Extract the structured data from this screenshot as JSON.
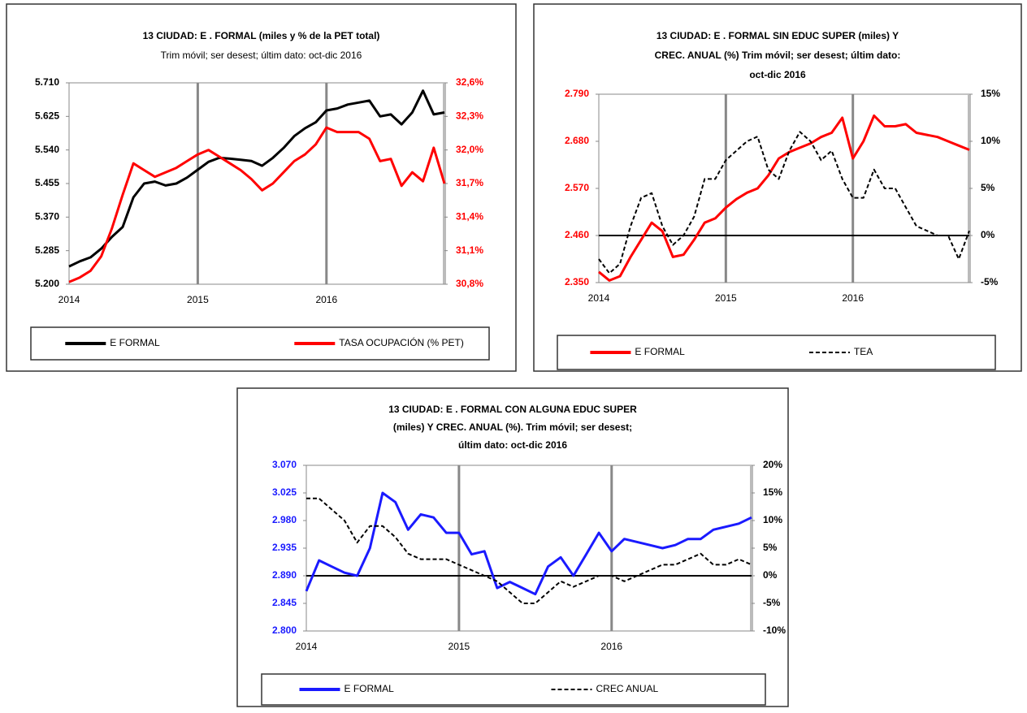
{
  "chart_data": [
    {
      "type": "line",
      "title": "13 CIUDAD: E . FORMAL (miles y % de la PET total)",
      "subtitle": "Trim móvil; ser desest; últim dato: oct-dic 2016",
      "categories": [
        "2014",
        null,
        null,
        null,
        null,
        null,
        null,
        null,
        null,
        null,
        null,
        null,
        "2015",
        null,
        null,
        null,
        null,
        null,
        null,
        null,
        null,
        null,
        null,
        null,
        "2016",
        null,
        null,
        null,
        null,
        null,
        null,
        null,
        null,
        null,
        null,
        null
      ],
      "ylim": [
        5200,
        5710
      ],
      "yticks": [
        {
          "value": 5200,
          "label": "5.200"
        },
        {
          "value": 5285,
          "label": "5.285"
        },
        {
          "value": 5370,
          "label": "5.370"
        },
        {
          "value": 5455,
          "label": "5.455"
        },
        {
          "value": 5540,
          "label": "5.540"
        },
        {
          "value": 5625,
          "label": "5.625"
        },
        {
          "value": 5710,
          "label": "5.710"
        }
      ],
      "y2lim": [
        30.8,
        32.6
      ],
      "y2ticks": [
        {
          "value": 30.8,
          "label": "30,8%"
        },
        {
          "value": 31.1,
          "label": "31,1%"
        },
        {
          "value": 31.4,
          "label": "31,4%"
        },
        {
          "value": 31.7,
          "label": "31,7%"
        },
        {
          "value": 32.0,
          "label": "32,0%"
        },
        {
          "value": 32.3,
          "label": "32,3%"
        },
        {
          "value": 32.6,
          "label": "32,6%"
        }
      ],
      "zero_line": false,
      "series": [
        {
          "name": "E FORMAL",
          "color": "#000000",
          "dash": false,
          "values": [
            5245,
            5258,
            5268,
            5290,
            5320,
            5345,
            5420,
            5455,
            5460,
            5450,
            5455,
            5470,
            5490,
            5510,
            5520,
            5518,
            5515,
            5512,
            5500,
            5520,
            5545,
            5575,
            5595,
            5610,
            5640,
            5645,
            5655,
            5660,
            5665,
            5625,
            5630,
            5605,
            5635,
            5690,
            5630,
            5635
          ]
        },
        {
          "name": "TASA OCUPACIÓN (% PET)",
          "color": "#ff0000",
          "dash": false,
          "axis": "y2",
          "values": [
            30.82,
            30.86,
            30.92,
            31.05,
            31.3,
            31.6,
            31.88,
            31.82,
            31.76,
            31.8,
            31.84,
            31.9,
            31.96,
            32.0,
            31.94,
            31.88,
            31.82,
            31.74,
            31.64,
            31.7,
            31.8,
            31.9,
            31.96,
            32.05,
            32.2,
            32.16,
            32.16,
            32.16,
            32.1,
            31.9,
            31.92,
            31.68,
            31.8,
            31.72,
            32.02,
            31.7
          ]
        }
      ]
    },
    {
      "type": "line",
      "title": [
        "13 CIUDAD: E . FORMAL SIN EDUC SUPER (miles) Y",
        "CREC. ANUAL (%) Trim móvil; ser desest; últim dato:",
        "oct-dic 2016"
      ],
      "categories": [
        "2014",
        null,
        null,
        null,
        null,
        null,
        null,
        null,
        null,
        null,
        null,
        null,
        "2015",
        null,
        null,
        null,
        null,
        null,
        null,
        null,
        null,
        null,
        null,
        null,
        "2016",
        null,
        null,
        null,
        null,
        null,
        null,
        null,
        null,
        null,
        null,
        null
      ],
      "ylim": [
        2350,
        2790
      ],
      "yticks": [
        {
          "value": 2350,
          "label": "2.350"
        },
        {
          "value": 2460,
          "label": "2.460"
        },
        {
          "value": 2570,
          "label": "2.570"
        },
        {
          "value": 2680,
          "label": "2.680"
        },
        {
          "value": 2790,
          "label": "2.790"
        }
      ],
      "y2lim": [
        -5,
        15
      ],
      "y2ticks": [
        {
          "value": -5,
          "label": "-5%"
        },
        {
          "value": 0,
          "label": "0%"
        },
        {
          "value": 5,
          "label": "5%"
        },
        {
          "value": 10,
          "label": "10%"
        },
        {
          "value": 15,
          "label": "15%"
        }
      ],
      "zero_line": true,
      "series": [
        {
          "name": "E FORMAL",
          "color": "#ff0000",
          "dash": false,
          "values": [
            2375,
            2355,
            2365,
            2410,
            2450,
            2490,
            2470,
            2410,
            2415,
            2450,
            2490,
            2500,
            2525,
            2545,
            2560,
            2570,
            2600,
            2640,
            2655,
            2665,
            2675,
            2690,
            2700,
            2735,
            2640,
            2680,
            2740,
            2715,
            2715,
            2720,
            2700,
            2695,
            2690,
            2680,
            2670,
            2660
          ]
        },
        {
          "name": "TEA",
          "color": "#000000",
          "dash": true,
          "axis": "y2",
          "values": [
            -2.5,
            -4,
            -3,
            1,
            4,
            4.5,
            1,
            -1,
            0,
            2,
            6,
            6,
            8,
            9,
            10,
            10.5,
            7,
            6,
            9,
            11,
            10,
            8,
            9,
            6,
            4,
            4,
            7,
            5,
            5,
            3,
            1,
            0.5,
            0,
            0,
            -2.5,
            0.5
          ]
        }
      ]
    },
    {
      "type": "line",
      "title": [
        "13 CIUDAD: E . FORMAL CON ALGUNA EDUC SUPER",
        "(miles) Y CREC. ANUAL (%). Trim móvil; ser desest;",
        "últim dato: oct-dic 2016"
      ],
      "categories": [
        "2014",
        null,
        null,
        null,
        null,
        null,
        null,
        null,
        null,
        null,
        null,
        null,
        "2015",
        null,
        null,
        null,
        null,
        null,
        null,
        null,
        null,
        null,
        null,
        null,
        "2016",
        null,
        null,
        null,
        null,
        null,
        null,
        null,
        null,
        null,
        null,
        null
      ],
      "ylim": [
        2800,
        3070
      ],
      "yticks": [
        {
          "value": 2800,
          "label": "2.800"
        },
        {
          "value": 2845,
          "label": "2.845"
        },
        {
          "value": 2890,
          "label": "2.890"
        },
        {
          "value": 2935,
          "label": "2.935"
        },
        {
          "value": 2980,
          "label": "2.980"
        },
        {
          "value": 3025,
          "label": "3.025"
        },
        {
          "value": 3070,
          "label": "3.070"
        }
      ],
      "y2lim": [
        -10,
        20
      ],
      "y2ticks": [
        {
          "value": -10,
          "label": "-10%"
        },
        {
          "value": -5,
          "label": "-5%"
        },
        {
          "value": 0,
          "label": "0%"
        },
        {
          "value": 5,
          "label": "5%"
        },
        {
          "value": 10,
          "label": "10%"
        },
        {
          "value": 15,
          "label": "15%"
        },
        {
          "value": 20,
          "label": "20%"
        }
      ],
      "zero_line": true,
      "series": [
        {
          "name": "E FORMAL",
          "color": "#1a1aff",
          "dash": false,
          "values": [
            2865,
            2915,
            2905,
            2895,
            2890,
            2935,
            3025,
            3010,
            2965,
            2990,
            2985,
            2960,
            2960,
            2925,
            2930,
            2870,
            2880,
            2870,
            2860,
            2905,
            2920,
            2890,
            2925,
            2960,
            2930,
            2950,
            2945,
            2940,
            2935,
            2940,
            2950,
            2950,
            2965,
            2970,
            2975,
            2985
          ]
        },
        {
          "name": "CREC ANUAL",
          "color": "#000000",
          "dash": true,
          "axis": "y2",
          "values": [
            14,
            14,
            12,
            10,
            6,
            9,
            9,
            7,
            4,
            3,
            3,
            3,
            2,
            1,
            0,
            -1,
            -3,
            -5,
            -5,
            -3,
            -1,
            -2,
            -1,
            0,
            0,
            -1,
            0,
            1,
            2,
            2,
            3,
            4,
            2,
            2,
            3,
            2
          ]
        }
      ]
    }
  ]
}
